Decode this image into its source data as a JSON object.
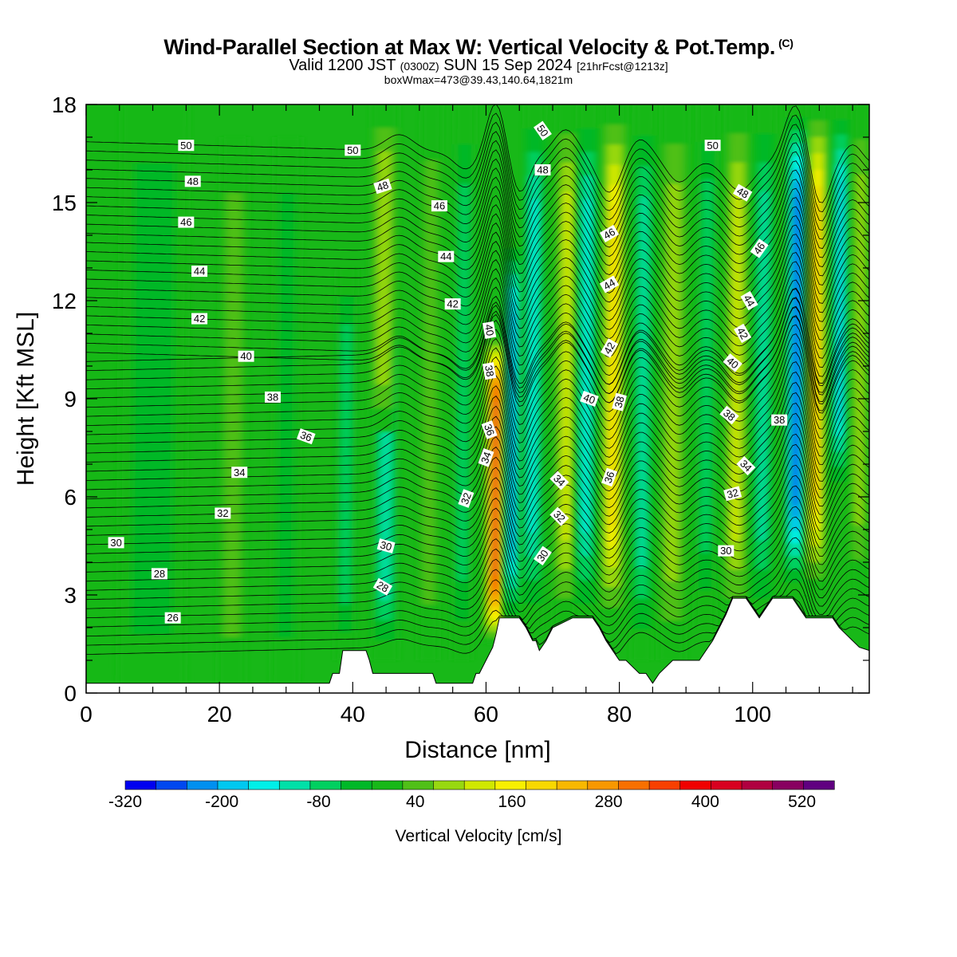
{
  "header": {
    "title_main": "Wind-Parallel Section at Max W: Vertical Velocity & Pot.Temp.",
    "title_copyright": "(C)",
    "valid_prefix": "Valid 1200 JST",
    "valid_utc": "(0300Z)",
    "valid_date": "SUN 15 Sep 2024",
    "forecast": "[21hrFcst@1213z]",
    "box_info": "boxWmax=473@39.43,140.64,1821m"
  },
  "chart_data": {
    "type": "heatmap",
    "xlabel": "Distance [nm]",
    "ylabel": "Height [Kft MSL]",
    "xlim": [
      0,
      117.5
    ],
    "ylim": [
      0,
      18
    ],
    "x_ticks": [
      0,
      20,
      40,
      60,
      80,
      100
    ],
    "y_ticks": [
      0,
      3,
      6,
      9,
      12,
      15,
      18
    ],
    "colorbar": {
      "label": "Vertical Velocity [cm/s]",
      "tick_labels": [
        "-320",
        "-200",
        "-80",
        "40",
        "160",
        "280",
        "400",
        "520"
      ],
      "tick_values": [
        -320,
        -200,
        -80,
        40,
        160,
        280,
        400,
        520
      ],
      "boundaries": [
        -320,
        -280,
        -240,
        -200,
        -160,
        -120,
        -80,
        -40,
        0,
        40,
        80,
        120,
        160,
        200,
        240,
        280,
        320,
        360,
        400,
        440,
        480,
        520,
        560
      ],
      "colors": [
        "#0000f0",
        "#0048f0",
        "#0090f0",
        "#00c8f0",
        "#00f0e8",
        "#00e0a8",
        "#00d060",
        "#00b828",
        "#18b818",
        "#50c018",
        "#98d810",
        "#d0e800",
        "#f8f000",
        "#f8d800",
        "#f8b800",
        "#f89800",
        "#f87000",
        "#f84000",
        "#f00000",
        "#d80020",
        "#b00040",
        "#880060",
        "#600080"
      ]
    },
    "vertical_velocity_columns": [
      {
        "x": 2,
        "w": 8,
        "value": 20,
        "z_bottom": 0,
        "z_top": 18
      },
      {
        "x": 10,
        "w": 10,
        "value": -30,
        "z_bottom": 0,
        "z_top": 18
      },
      {
        "x": 22,
        "w": 4,
        "value": 70,
        "z_bottom": 0,
        "z_top": 17
      },
      {
        "x": 30,
        "w": 4,
        "value": -50,
        "z_bottom": 0,
        "z_top": 17
      },
      {
        "x": 39,
        "w": 3,
        "value": -90,
        "z_bottom": 1,
        "z_top": 13
      },
      {
        "x": 45,
        "w": 4,
        "value": -130,
        "z_bottom": 1,
        "z_top": 12
      },
      {
        "x": 44.5,
        "w": 4,
        "value": 110,
        "z_bottom": 8,
        "z_top": 18
      },
      {
        "x": 51.5,
        "w": 3,
        "value": 90,
        "z_bottom": 1,
        "z_top": 18
      },
      {
        "x": 56.5,
        "w": 3,
        "value": -90,
        "z_bottom": 1,
        "z_top": 18
      },
      {
        "x": 61.5,
        "w": 3.2,
        "value": 473,
        "z_bottom": 1.5,
        "z_top": 11
      },
      {
        "x": 64,
        "w": 2.5,
        "value": -250,
        "z_bottom": 2,
        "z_top": 14
      },
      {
        "x": 67,
        "w": 3,
        "value": -170,
        "z_bottom": 2,
        "z_top": 18
      },
      {
        "x": 72,
        "w": 3.5,
        "value": 170,
        "z_bottom": 2,
        "z_top": 18
      },
      {
        "x": 75,
        "w": 3,
        "value": -140,
        "z_bottom": 2,
        "z_top": 18
      },
      {
        "x": 79,
        "w": 3.5,
        "value": 230,
        "z_bottom": 2,
        "z_top": 18
      },
      {
        "x": 83.5,
        "w": 3,
        "value": -110,
        "z_bottom": 1,
        "z_top": 18
      },
      {
        "x": 88,
        "w": 4,
        "value": 130,
        "z_bottom": 1,
        "z_top": 18
      },
      {
        "x": 93,
        "w": 3,
        "value": -80,
        "z_bottom": 2,
        "z_top": 18
      },
      {
        "x": 97.5,
        "w": 3.5,
        "value": 140,
        "z_bottom": 2,
        "z_top": 18
      },
      {
        "x": 101.5,
        "w": 3,
        "value": -120,
        "z_bottom": 2,
        "z_top": 18
      },
      {
        "x": 106.5,
        "w": 3.2,
        "value": -330,
        "z_bottom": 3,
        "z_top": 18
      },
      {
        "x": 109.5,
        "w": 3,
        "value": 270,
        "z_bottom": 3,
        "z_top": 18
      },
      {
        "x": 113,
        "w": 2.5,
        "value": -200,
        "z_bottom": 6,
        "z_top": 18
      },
      {
        "x": 116,
        "w": 2.5,
        "value": 130,
        "z_bottom": 3,
        "z_top": 18
      }
    ],
    "terrain": {
      "x": [
        0,
        36.5,
        37,
        38,
        38.5,
        39,
        42,
        42.5,
        43,
        44,
        45,
        49,
        52,
        52.5,
        58,
        58.5,
        59,
        60,
        61,
        61.5,
        62,
        65,
        66,
        67,
        67.5,
        68,
        69,
        70,
        73,
        76,
        77,
        78,
        79,
        80,
        81,
        82,
        83,
        84,
        85,
        86,
        88,
        92,
        93,
        94,
        95,
        96,
        97,
        99,
        100,
        101,
        102,
        103,
        104,
        106,
        107,
        108,
        110,
        112,
        113,
        114,
        115,
        116,
        117.5
      ],
      "height": [
        0.3,
        0.3,
        0.6,
        0.6,
        1.3,
        1.3,
        1.3,
        1.0,
        0.6,
        0.6,
        0.6,
        0.6,
        0.6,
        0.3,
        0.3,
        0.6,
        0.6,
        1.0,
        1.4,
        1.8,
        2.3,
        2.3,
        2.0,
        1.6,
        1.6,
        1.3,
        1.6,
        2.0,
        2.3,
        2.3,
        2.0,
        1.6,
        1.3,
        1.0,
        1.0,
        0.8,
        0.6,
        0.6,
        0.3,
        0.6,
        1.0,
        1.0,
        1.3,
        1.6,
        2.0,
        2.4,
        2.9,
        2.9,
        2.6,
        2.3,
        2.6,
        2.9,
        2.9,
        2.9,
        2.6,
        2.3,
        2.3,
        2.3,
        2.0,
        1.8,
        1.6,
        1.4,
        1.3
      ]
    },
    "potential_temperature": {
      "levels": [
        26,
        28,
        30,
        32,
        34,
        36,
        38,
        40,
        42,
        44,
        46,
        48,
        50
      ]
    },
    "contour_labels": [
      {
        "text": "50",
        "x": 15,
        "y": 16.75,
        "angle": 0
      },
      {
        "text": "48",
        "x": 16,
        "y": 15.65,
        "angle": 0
      },
      {
        "text": "46",
        "x": 15,
        "y": 14.4,
        "angle": 0
      },
      {
        "text": "44",
        "x": 17,
        "y": 12.9,
        "angle": 0
      },
      {
        "text": "42",
        "x": 17,
        "y": 11.45,
        "angle": 0
      },
      {
        "text": "40",
        "x": 24,
        "y": 10.3,
        "angle": 0
      },
      {
        "text": "38",
        "x": 28,
        "y": 9.05,
        "angle": 0
      },
      {
        "text": "36",
        "x": 33,
        "y": 7.85,
        "angle": 20
      },
      {
        "text": "34",
        "x": 23,
        "y": 6.75,
        "angle": 0
      },
      {
        "text": "32",
        "x": 20.5,
        "y": 5.5,
        "angle": 0
      },
      {
        "text": "30",
        "x": 4.5,
        "y": 4.6,
        "angle": 0
      },
      {
        "text": "28",
        "x": 11,
        "y": 3.65,
        "angle": 0
      },
      {
        "text": "26",
        "x": 13,
        "y": 2.3,
        "angle": 0
      },
      {
        "text": "50",
        "x": 40,
        "y": 16.6,
        "angle": 0
      },
      {
        "text": "48",
        "x": 44.5,
        "y": 15.5,
        "angle": -18
      },
      {
        "text": "46",
        "x": 53,
        "y": 14.9,
        "angle": 0
      },
      {
        "text": "44",
        "x": 54,
        "y": 13.35,
        "angle": 0
      },
      {
        "text": "42",
        "x": 55,
        "y": 11.9,
        "angle": 0
      },
      {
        "text": "40",
        "x": 60.5,
        "y": 11.1,
        "angle": 80
      },
      {
        "text": "38",
        "x": 60.5,
        "y": 9.85,
        "angle": 80
      },
      {
        "text": "36",
        "x": 60.5,
        "y": 8.05,
        "angle": 70
      },
      {
        "text": "34",
        "x": 60,
        "y": 7.2,
        "angle": -70
      },
      {
        "text": "32",
        "x": 57,
        "y": 5.95,
        "angle": -70
      },
      {
        "text": "30",
        "x": 45,
        "y": 4.5,
        "angle": 15
      },
      {
        "text": "28",
        "x": 44.5,
        "y": 3.25,
        "angle": 30
      },
      {
        "text": "50",
        "x": 68.5,
        "y": 17.2,
        "angle": 55
      },
      {
        "text": "48",
        "x": 68.5,
        "y": 16.0,
        "angle": 0
      },
      {
        "text": "46",
        "x": 78.5,
        "y": 14.05,
        "angle": -30
      },
      {
        "text": "44",
        "x": 78.5,
        "y": 12.5,
        "angle": -30
      },
      {
        "text": "42",
        "x": 78.5,
        "y": 10.55,
        "angle": -60
      },
      {
        "text": "40",
        "x": 75.5,
        "y": 9.0,
        "angle": 20
      },
      {
        "text": "38",
        "x": 80,
        "y": 8.9,
        "angle": -75
      },
      {
        "text": "36",
        "x": 78.5,
        "y": 6.6,
        "angle": -70
      },
      {
        "text": "34",
        "x": 71,
        "y": 6.5,
        "angle": 45
      },
      {
        "text": "32",
        "x": 71,
        "y": 5.4,
        "angle": 45
      },
      {
        "text": "30",
        "x": 68.5,
        "y": 4.2,
        "angle": -55
      },
      {
        "text": "50",
        "x": 94,
        "y": 16.75,
        "angle": 0
      },
      {
        "text": "48",
        "x": 98.5,
        "y": 15.3,
        "angle": 30
      },
      {
        "text": "46",
        "x": 101,
        "y": 13.6,
        "angle": -55
      },
      {
        "text": "44",
        "x": 99.5,
        "y": 12.0,
        "angle": 60
      },
      {
        "text": "42",
        "x": 98.5,
        "y": 11.0,
        "angle": 60
      },
      {
        "text": "40",
        "x": 97,
        "y": 10.1,
        "angle": 40
      },
      {
        "text": "38",
        "x": 96.5,
        "y": 8.5,
        "angle": 40
      },
      {
        "text": "34",
        "x": 99,
        "y": 6.95,
        "angle": 45
      },
      {
        "text": "32",
        "x": 97,
        "y": 6.1,
        "angle": -15
      },
      {
        "text": "30",
        "x": 96,
        "y": 4.35,
        "angle": 0
      },
      {
        "text": "38",
        "x": 104,
        "y": 8.35,
        "angle": 0
      }
    ]
  }
}
